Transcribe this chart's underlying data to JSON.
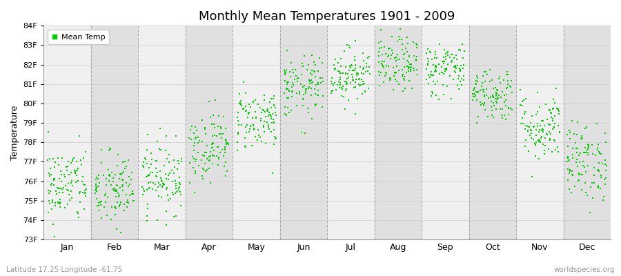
{
  "title": "Monthly Mean Temperatures 1901 - 2009",
  "ylabel": "Temperature",
  "xlabel_months": [
    "Jan",
    "Feb",
    "Mar",
    "Apr",
    "May",
    "Jun",
    "Jul",
    "Aug",
    "Sep",
    "Oct",
    "Nov",
    "Dec"
  ],
  "bottom_left": "Latitude 17.25 Longitude -61.75",
  "bottom_right": "worldspecies.org",
  "legend_label": "Mean Temp",
  "dot_color": "#00CC00",
  "background_color": "#ffffff",
  "band_colors": [
    "#f0f0f0",
    "#e0e0e0"
  ],
  "ylim": [
    73,
    84
  ],
  "yticks": [
    73,
    74,
    75,
    76,
    77,
    78,
    79,
    80,
    81,
    82,
    83,
    84
  ],
  "ytick_labels": [
    "73F",
    "74F",
    "75F",
    "76F",
    "77F",
    "78F",
    "79F",
    "80F",
    "81F",
    "82F",
    "83F",
    "84F"
  ],
  "n_years": 109,
  "monthly_means": [
    75.8,
    75.5,
    76.2,
    77.8,
    79.2,
    80.8,
    81.5,
    82.0,
    81.8,
    80.5,
    78.8,
    77.0
  ],
  "monthly_stds": [
    1.0,
    1.0,
    0.9,
    0.9,
    0.8,
    0.8,
    0.7,
    0.7,
    0.7,
    0.7,
    0.9,
    1.0
  ],
  "seed": 42
}
